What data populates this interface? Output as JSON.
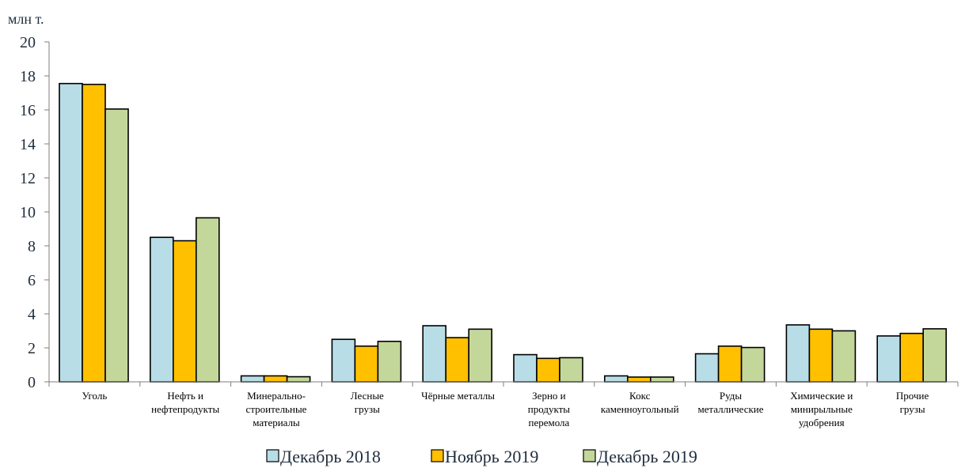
{
  "chart_data": {
    "type": "bar",
    "ylabel": "млн т.",
    "ylim": [
      0,
      20
    ],
    "yticks": [
      "0",
      "2",
      "4",
      "6",
      "8",
      "10",
      "12",
      "14",
      "16",
      "18",
      "20"
    ],
    "grid": false,
    "legend_position": "bottom",
    "categories": [
      [
        "Уголь"
      ],
      [
        "Нефть и",
        "нефтепродукты"
      ],
      [
        "Минерально-",
        "строительные",
        "материалы"
      ],
      [
        "Лесные",
        "грузы"
      ],
      [
        "Чёрные металлы"
      ],
      [
        "Зерно и",
        "продукты",
        "перемола"
      ],
      [
        "Кокс",
        "каменноугольный"
      ],
      [
        "Руды",
        "металлические"
      ],
      [
        "Химические и",
        "минирыльные",
        "удобрения"
      ],
      [
        "Прочие",
        "грузы"
      ]
    ],
    "series": [
      {
        "name": "Декабрь 2018",
        "color": "#b8dde6",
        "values": [
          17.55,
          8.5,
          0.35,
          2.5,
          3.3,
          1.6,
          0.35,
          1.65,
          3.35,
          2.7
        ]
      },
      {
        "name": "Ноябрь 2019",
        "color": "#ffc000",
        "values": [
          17.5,
          8.3,
          0.35,
          2.1,
          2.6,
          1.38,
          0.28,
          2.1,
          3.1,
          2.85
        ]
      },
      {
        "name": "Декабрь 2019",
        "color": "#c4d79b",
        "values": [
          16.05,
          9.65,
          0.3,
          2.38,
          3.1,
          1.42,
          0.28,
          2.02,
          3.0,
          3.12
        ]
      }
    ]
  }
}
